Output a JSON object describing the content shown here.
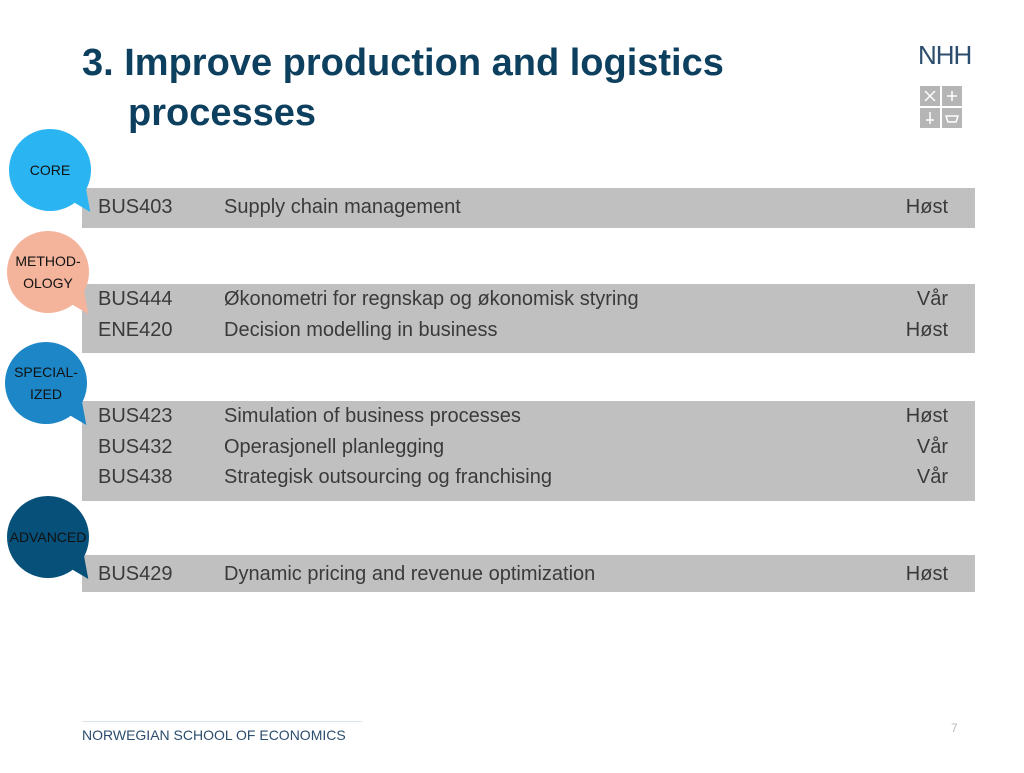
{
  "header": {
    "title_lines": [
      "3. Improve production and logistics",
      "processes"
    ],
    "logo": "NHH"
  },
  "sections": [
    {
      "badge_lines": [
        "CORE"
      ],
      "rows": [
        [
          "BUS403",
          "Supply chain management",
          "Høst"
        ]
      ]
    },
    {
      "badge_lines": [
        "METHOD-",
        "OLOGY"
      ],
      "rows": [
        [
          "BUS444",
          "Økonometri for regnskap og økonomisk styring",
          "Vår"
        ],
        [
          "ENE420",
          "Decision modelling in business",
          "Høst"
        ]
      ]
    },
    {
      "badge_lines": [
        "SPECIAL-",
        "IZED"
      ],
      "rows": [
        [
          "BUS423",
          "Simulation of business processes",
          "Høst"
        ],
        [
          "BUS432",
          "Operasjonell planlegging",
          "Vår"
        ],
        [
          "BUS438",
          "Strategisk outsourcing og franchising",
          "Vår"
        ]
      ]
    },
    {
      "badge_lines": [
        "ADVANCED"
      ],
      "rows": [
        [
          "BUS429",
          "Dynamic pricing and revenue optimization",
          "Høst"
        ]
      ]
    }
  ],
  "footer": {
    "school": "NORWEGIAN SCHOOL OF ECONOMICS",
    "page_number": "7"
  }
}
